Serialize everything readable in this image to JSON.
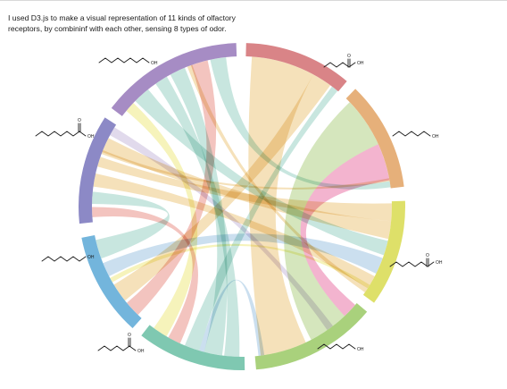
{
  "caption": {
    "line1": "I used D3.js to make a visual representation of 11 kinds  of  olfactory",
    "line2": "receptors,  by combininf  with each other, sensing 8 types of odor."
  },
  "chart_data": {
    "type": "chord",
    "groups": [
      {
        "id": "r1",
        "color": "#d98487",
        "label": "OH"
      },
      {
        "id": "r2",
        "color": "#e6b07a",
        "label": "OH"
      },
      {
        "id": "r3",
        "color": "#dee069",
        "label": "OH"
      },
      {
        "id": "r4",
        "color": "#a9d17c",
        "label": "OH"
      },
      {
        "id": "r5",
        "color": "#7fc8b1",
        "label": "OH"
      },
      {
        "id": "r6",
        "color": "#73b5dc",
        "label": "OH"
      },
      {
        "id": "r7",
        "color": "#8c89c6",
        "label": "OH"
      },
      {
        "id": "r8",
        "color": "#a68cc4",
        "label": "OH"
      }
    ],
    "ribbon_colors": [
      "#f2d9a6",
      "#b8dfd6",
      "#c9dfab",
      "#ef9fc1",
      "#f0b3ad",
      "#f3f0a8",
      "#bdd6ea",
      "#d8cfe7"
    ]
  }
}
